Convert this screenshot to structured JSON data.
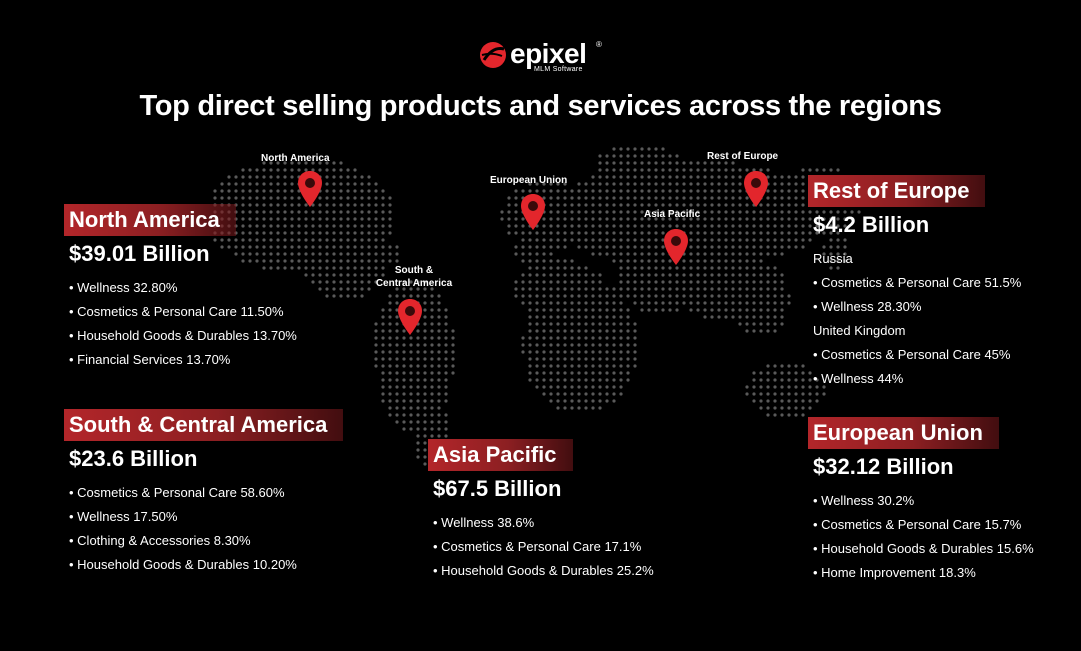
{
  "brand": {
    "name": "epixel",
    "registered": "®",
    "tagline": "MLM Software",
    "accent": "#e3262c"
  },
  "headline": "Top direct selling products and services across the regions",
  "map_pins": [
    {
      "label": "North America",
      "icon": "location-pin-icon"
    },
    {
      "label": "European Union",
      "icon": "location-pin-icon"
    },
    {
      "label": "Rest of Europe",
      "icon": "location-pin-icon"
    },
    {
      "label": "Asia Pacific",
      "icon": "location-pin-icon"
    },
    {
      "label_line1": "South &",
      "label_line2": "Central America",
      "icon": "location-pin-icon"
    }
  ],
  "regions": {
    "north_america": {
      "name": "North America",
      "amount": "$39.01 Billion",
      "items": [
        "Wellness 32.80%",
        "Cosmetics & Personal Care 11.50%",
        "Household Goods & Durables 13.70%",
        "Financial Services 13.70%"
      ]
    },
    "south_central_america": {
      "name": "South & Central America",
      "amount": "$23.6 Billion",
      "items": [
        "Cosmetics & Personal Care 58.60%",
        "Wellness 17.50%",
        "Clothing & Accessories 8.30%",
        "Household Goods & Durables 10.20%"
      ]
    },
    "asia_pacific": {
      "name": "Asia Pacific",
      "amount": "$67.5 Billion",
      "items": [
        "Wellness 38.6%",
        "Cosmetics & Personal Care 17.1%",
        "Household Goods & Durables 25.2%"
      ]
    },
    "rest_of_europe": {
      "name": "Rest of Europe",
      "amount": "$4.2 Billion",
      "countries": [
        {
          "name": "Russia",
          "items": [
            "Cosmetics & Personal Care 51.5%",
            "Wellness 28.30%"
          ]
        },
        {
          "name": "United Kingdom",
          "items": [
            "Cosmetics & Personal Care 45%",
            "Wellness 44%"
          ]
        }
      ]
    },
    "european_union": {
      "name": "European Union",
      "amount": "$32.12 Billion",
      "items": [
        "Wellness 30.2%",
        "Cosmetics & Personal Care 15.7%",
        "Household Goods & Durables 15.6%",
        "Home Improvement 18.3%"
      ]
    }
  }
}
